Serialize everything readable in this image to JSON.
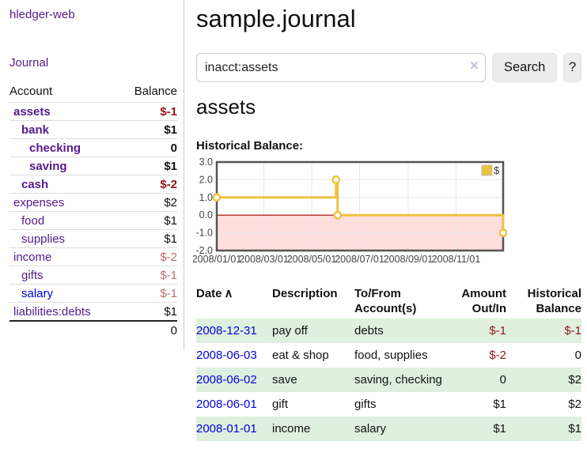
{
  "app": {
    "title": "hledger-web"
  },
  "colors": {
    "accent_purple": "#551a8b",
    "link_blue": "#0000dd",
    "negative_strong": "#941616",
    "negative_soft": "#bf6a6a",
    "row_green": "#dff0df",
    "chart_line": "#edc240"
  },
  "sidebar": {
    "journal_link": "Journal",
    "accounts_table": {
      "headers": {
        "account": "Account",
        "balance": "Balance"
      },
      "rows": [
        {
          "name": "assets",
          "level": 0,
          "bold": true,
          "color": "purple",
          "balance": "$-1",
          "balance_class": "neg-strong"
        },
        {
          "name": "bank",
          "level": 1,
          "bold": true,
          "color": "purple",
          "balance": "$1",
          "balance_class": "pos"
        },
        {
          "name": "checking",
          "level": 2,
          "bold": true,
          "color": "purple",
          "balance": "0",
          "balance_class": "pos"
        },
        {
          "name": "saving",
          "level": 2,
          "bold": true,
          "color": "purple",
          "balance": "$1",
          "balance_class": "pos"
        },
        {
          "name": "cash",
          "level": 1,
          "bold": true,
          "color": "purple",
          "balance": "$-2",
          "balance_class": "neg-strong"
        },
        {
          "name": "expenses",
          "level": 0,
          "bold": false,
          "color": "purple",
          "balance": "$2",
          "balance_class": "pos"
        },
        {
          "name": "food",
          "level": 1,
          "bold": false,
          "color": "purple",
          "balance": "$1",
          "balance_class": "pos"
        },
        {
          "name": "supplies",
          "level": 1,
          "bold": false,
          "color": "purple",
          "balance": "$1",
          "balance_class": "pos"
        },
        {
          "name": "income",
          "level": 0,
          "bold": false,
          "color": "purple",
          "balance": "$-2",
          "balance_class": "neg-soft"
        },
        {
          "name": "gifts",
          "level": 1,
          "bold": false,
          "color": "purple",
          "balance": "$-1",
          "balance_class": "neg-soft"
        },
        {
          "name": "salary",
          "level": 1,
          "bold": false,
          "color": "blue",
          "balance": "$-1",
          "balance_class": "neg-soft"
        },
        {
          "name": "liabilities:debts",
          "level": 0,
          "bold": false,
          "color": "purple",
          "balance": "$1",
          "balance_class": "pos"
        }
      ],
      "total": "0"
    }
  },
  "main": {
    "title": "sample.journal",
    "search": {
      "value": "inacct:assets",
      "clear_icon": "×",
      "button": "Search",
      "help_button": "?"
    },
    "account_heading": "assets",
    "chart_label": "Historical Balance:",
    "transactions": {
      "headers": {
        "date": "Date",
        "description": "Description",
        "accounts": "To/From Account(s)",
        "amount": "Amount Out/In",
        "balance": "Historical Balance"
      },
      "sort_icon": "∧",
      "rows": [
        {
          "date": "2008-12-31",
          "description": "pay off",
          "accounts": "debts",
          "amount": "$-1",
          "amount_neg": true,
          "balance": "$-1",
          "balance_neg": true
        },
        {
          "date": "2008-06-03",
          "description": "eat & shop",
          "accounts": "food, supplies",
          "amount": "$-2",
          "amount_neg": true,
          "balance": "0",
          "balance_neg": false
        },
        {
          "date": "2008-06-02",
          "description": "save",
          "accounts": "saving, checking",
          "amount": "0",
          "amount_neg": false,
          "balance": "$2",
          "balance_neg": false
        },
        {
          "date": "2008-06-01",
          "description": "gift",
          "accounts": "gifts",
          "amount": "$1",
          "amount_neg": false,
          "balance": "$2",
          "balance_neg": false
        },
        {
          "date": "2008-01-01",
          "description": "income",
          "accounts": "salary",
          "amount": "$1",
          "amount_neg": false,
          "balance": "$1",
          "balance_neg": false
        }
      ]
    }
  },
  "chart_data": {
    "type": "line",
    "title": "Historical Balance:",
    "series": [
      {
        "name": "$",
        "color": "#edc240",
        "step": true,
        "points": [
          {
            "date": "2008/01/01",
            "value": 1.0
          },
          {
            "date": "2008/06/01",
            "value": 2.0
          },
          {
            "date": "2008/06/03",
            "value": 0.0
          },
          {
            "date": "2008/12/31",
            "value": -1.0
          }
        ]
      }
    ],
    "x_range": [
      "2008/01/01",
      "2008/12/31"
    ],
    "y_range": [
      -2.0,
      3.0
    ],
    "y_ticks": [
      "3.0",
      "2.0",
      "1.0",
      "0.0",
      "-1.0",
      "-2.0"
    ],
    "x_ticks": [
      "2008/01/01",
      "2008/03/01",
      "2008/05/01",
      "2008/07/01",
      "2008/09/01",
      "2008/11/01"
    ],
    "legend": "$",
    "legend_position": "top-right",
    "grid": true,
    "colors": {
      "negative_fill": "#ffdede",
      "zero_line": "#a40000",
      "border": "#545454",
      "gridline": "#e7e7e7"
    }
  }
}
